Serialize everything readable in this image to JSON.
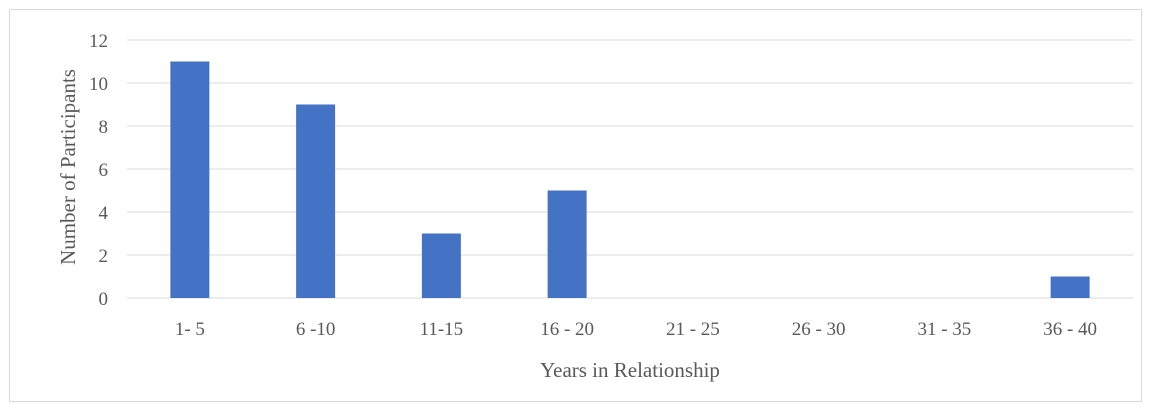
{
  "chart_data": {
    "type": "bar",
    "title": "",
    "xlabel": "Years in Relationship",
    "ylabel": "Number of Participants",
    "categories": [
      "1- 5",
      "6 -10",
      "11-15",
      "16 - 20",
      "21 - 25",
      "26 - 30",
      "31 - 35",
      "36 - 40"
    ],
    "values": [
      11,
      9,
      3,
      5,
      0,
      0,
      0,
      1
    ],
    "ylim": [
      0,
      12
    ],
    "yticks": [
      0,
      2,
      4,
      6,
      8,
      10,
      12
    ],
    "grid": true,
    "legend": "none",
    "bar_color": "#4472c4"
  }
}
